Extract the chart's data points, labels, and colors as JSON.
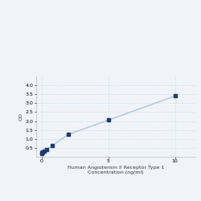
{
  "x_values": [
    0.0,
    0.05,
    0.1,
    0.2,
    0.4,
    0.8,
    2.0,
    5.0,
    10.0
  ],
  "y_values": [
    0.2,
    0.22,
    0.25,
    0.3,
    0.42,
    0.62,
    1.25,
    2.05,
    3.4
  ],
  "xlabel_line1": "Human Angiotensin II Receptor Type 1",
  "xlabel_line2": "Concentration (ng/ml)",
  "ylabel": "OD",
  "xlim": [
    -0.4,
    11.5
  ],
  "ylim": [
    0.0,
    4.5
  ],
  "yticks": [
    0.5,
    1.0,
    1.5,
    2.0,
    2.5,
    3.0,
    3.5,
    4.0
  ],
  "xticks": [
    0,
    5,
    10
  ],
  "marker_color": "#1f3a6e",
  "line_color": "#aac4da",
  "marker_size": 3.5,
  "line_width": 1.0,
  "grid_color": "#ccdded",
  "background_color": "#f0f4f8",
  "font_size_label": 4.5,
  "font_size_tick": 4.5
}
